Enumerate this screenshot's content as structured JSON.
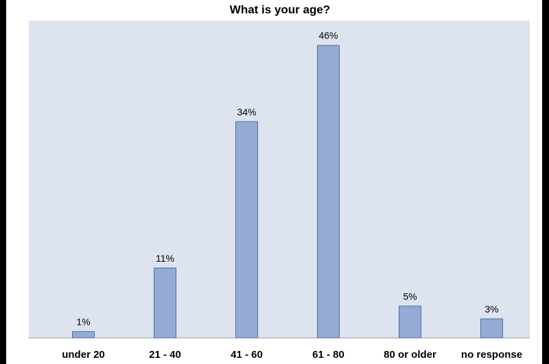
{
  "chart_data": {
    "type": "bar",
    "title": "What is your age?",
    "categories": [
      "under 20",
      "21 - 40",
      "41 - 60",
      "61 - 80",
      "80 or older",
      "no response"
    ],
    "values": [
      1,
      11,
      34,
      46,
      5,
      3
    ],
    "value_labels": [
      "1%",
      "11%",
      "34%",
      "46%",
      "5%",
      "3%"
    ],
    "color": "#95abd4"
  }
}
